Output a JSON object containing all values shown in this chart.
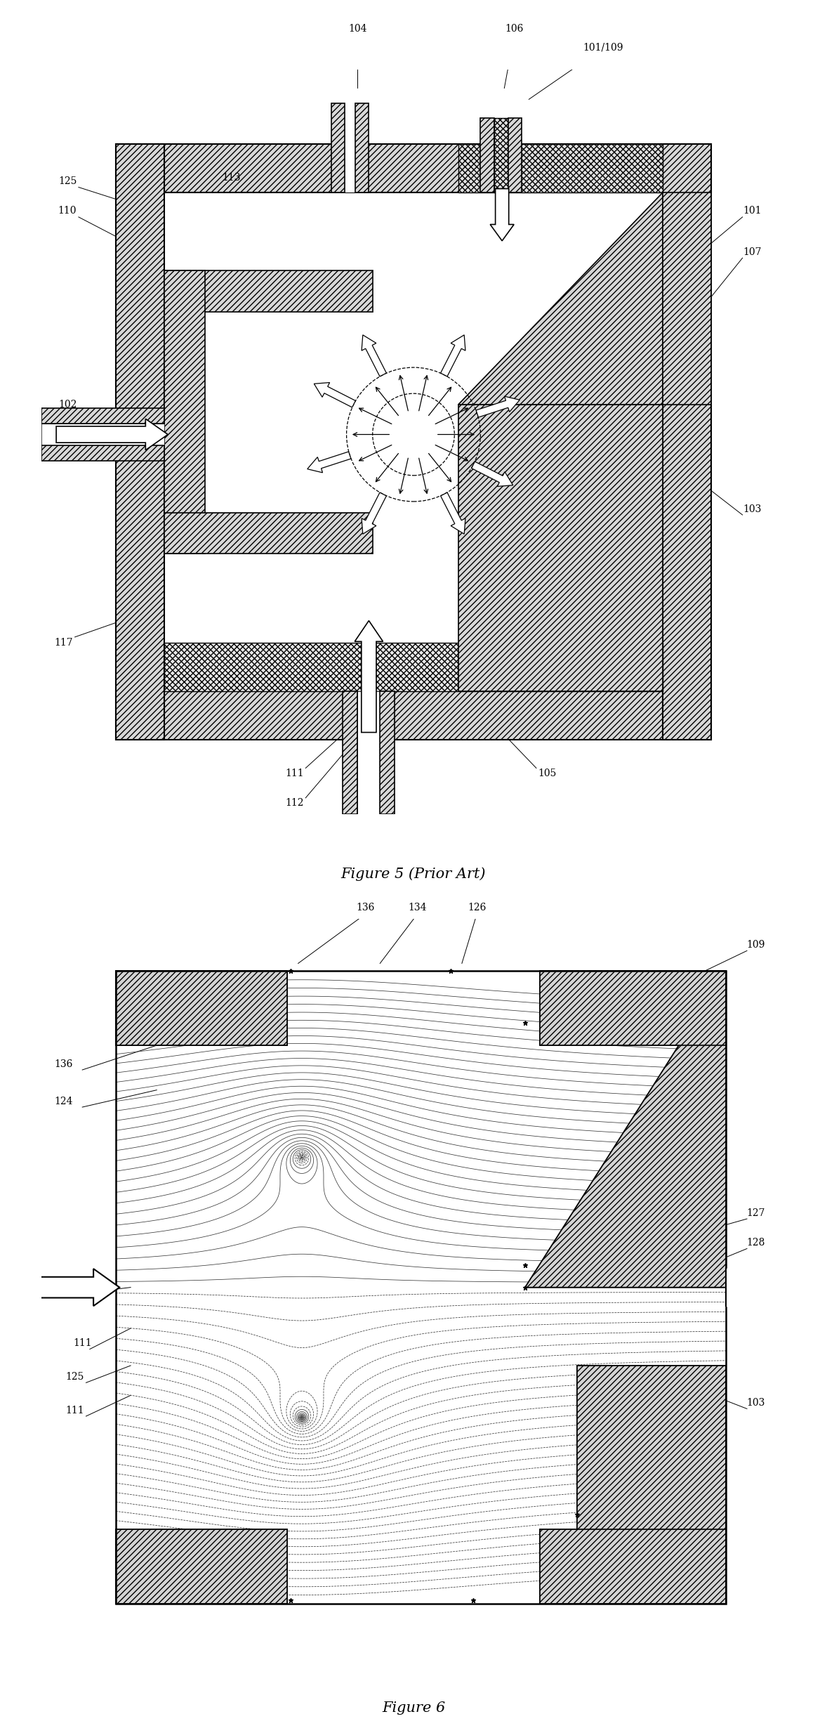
{
  "fig_width": 11.78,
  "fig_height": 24.67,
  "bg_color": "#ffffff",
  "figure5_title": "Figure 5 (Prior Art)",
  "figure6_title": "Figure 6"
}
